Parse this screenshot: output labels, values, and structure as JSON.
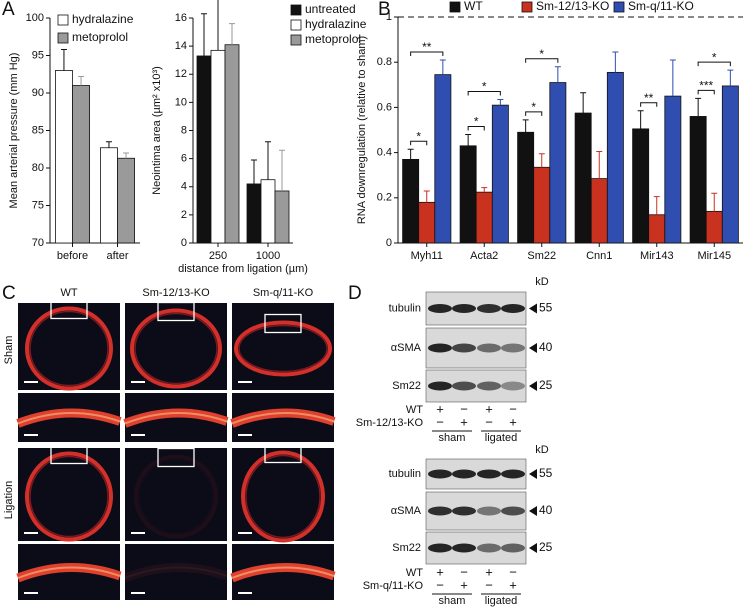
{
  "panels": [
    "A",
    "B",
    "C",
    "D"
  ],
  "chart_data": [
    {
      "type": "bar",
      "ylabel": "Mean arterial pressure (mm Hg)",
      "categories": [
        "before",
        "after"
      ],
      "series": [
        {
          "name": "hydralazine",
          "color": "#ffffff",
          "values": [
            93,
            82.7
          ],
          "errors": [
            2.8,
            0.8
          ]
        },
        {
          "name": "metoprolol",
          "color": "#9a9a9a",
          "values": [
            91,
            81.3
          ],
          "errors": [
            1.2,
            0.7
          ]
        }
      ],
      "ylim": [
        70,
        100
      ],
      "yticks": [
        70,
        75,
        80,
        85,
        90,
        95,
        100
      ],
      "legend": "upper left"
    },
    {
      "type": "bar",
      "ylabel": "Neointima area (µm² x10³)",
      "xlabel": "distance from ligation (µm)",
      "categories": [
        "250",
        "1000"
      ],
      "series": [
        {
          "name": "untreated",
          "color": "#111111",
          "values": [
            13.3,
            4.2
          ],
          "errors": [
            3,
            1.7
          ]
        },
        {
          "name": "hydralazine",
          "color": "#ffffff",
          "values": [
            13.7,
            4.5
          ],
          "errors": [
            4.4,
            2.7
          ]
        },
        {
          "name": "metoprolol",
          "color": "#9a9a9a",
          "values": [
            14.1,
            3.7
          ],
          "errors": [
            1.5,
            2.9
          ]
        }
      ],
      "ylim": [
        0,
        16
      ],
      "yticks": [
        0,
        2,
        4,
        6,
        8,
        10,
        12,
        14,
        16
      ],
      "legend": "upper right"
    },
    {
      "type": "bar",
      "ylabel": "RNA downregulation (relative to sham)",
      "categories": [
        "Myh11",
        "Acta2",
        "Sm22",
        "Cnn1",
        "Mir143",
        "Mir145"
      ],
      "series": [
        {
          "name": "WT",
          "color": "#111111",
          "values": [
            0.37,
            0.43,
            0.49,
            0.575,
            0.505,
            0.56
          ],
          "errors": [
            0.045,
            0.05,
            0.055,
            0.09,
            0.08,
            0.08
          ]
        },
        {
          "name": "Sm-12/13-KO",
          "color": "#c8321e",
          "values": [
            0.18,
            0.225,
            0.335,
            0.285,
            0.125,
            0.14
          ],
          "errors": [
            0.05,
            0.02,
            0.06,
            0.12,
            0.08,
            0.08
          ]
        },
        {
          "name": "Sm-q/11-KO",
          "color": "#2f4eb0",
          "values": [
            0.745,
            0.61,
            0.71,
            0.755,
            0.65,
            0.695
          ],
          "errors": [
            0.065,
            0.025,
            0.07,
            0.09,
            0.16,
            0.07
          ]
        }
      ],
      "ylim": [
        0,
        1
      ],
      "yticks": [
        0,
        0.2,
        0.4,
        0.6,
        0.8,
        1
      ],
      "hline": 1,
      "legend": "top",
      "annotations": [
        {
          "text": "*",
          "category": 0,
          "series": [
            0,
            1
          ]
        },
        {
          "text": "**",
          "category": 0,
          "series": [
            0,
            2
          ]
        },
        {
          "text": "*",
          "category": 1,
          "series": [
            0,
            1
          ]
        },
        {
          "text": "*",
          "category": 1,
          "series": [
            0,
            2
          ]
        },
        {
          "text": "*",
          "category": 2,
          "series": [
            0,
            1
          ]
        },
        {
          "text": "*",
          "category": 2,
          "series": [
            0,
            2
          ]
        },
        {
          "text": "**",
          "category": 4,
          "series": [
            0,
            1
          ]
        },
        {
          "text": "***",
          "category": 5,
          "series": [
            0,
            1
          ]
        },
        {
          "text": "*",
          "category": 5,
          "series": [
            0,
            2
          ]
        }
      ]
    }
  ],
  "micrographs": {
    "columns": [
      "WT",
      "Sm-12/13-KO",
      "Sm-q/11-KO"
    ],
    "rows": [
      "Sham",
      "Ligation"
    ]
  },
  "blots": [
    {
      "unit": "kD",
      "bands": [
        {
          "name": "tubulin",
          "marker": "55"
        },
        {
          "name": "αSMA",
          "marker": "40"
        },
        {
          "name": "Sm22",
          "marker": "25"
        }
      ],
      "genotypes": [
        {
          "name": "WT",
          "signs": [
            "+",
            "−",
            "+",
            "−"
          ]
        },
        {
          "name": "Sm-12/13-KO",
          "signs": [
            "−",
            "+",
            "−",
            "+"
          ]
        }
      ],
      "conditions": [
        "sham",
        "ligated"
      ]
    },
    {
      "unit": "kD",
      "bands": [
        {
          "name": "tubulin",
          "marker": "55"
        },
        {
          "name": "αSMA",
          "marker": "40"
        },
        {
          "name": "Sm22",
          "marker": "25"
        }
      ],
      "genotypes": [
        {
          "name": "WT",
          "signs": [
            "+",
            "−",
            "+",
            "−"
          ]
        },
        {
          "name": "Sm-q/11-KO",
          "signs": [
            "−",
            "+",
            "−",
            "+"
          ]
        }
      ],
      "conditions": [
        "sham",
        "ligated"
      ]
    }
  ]
}
